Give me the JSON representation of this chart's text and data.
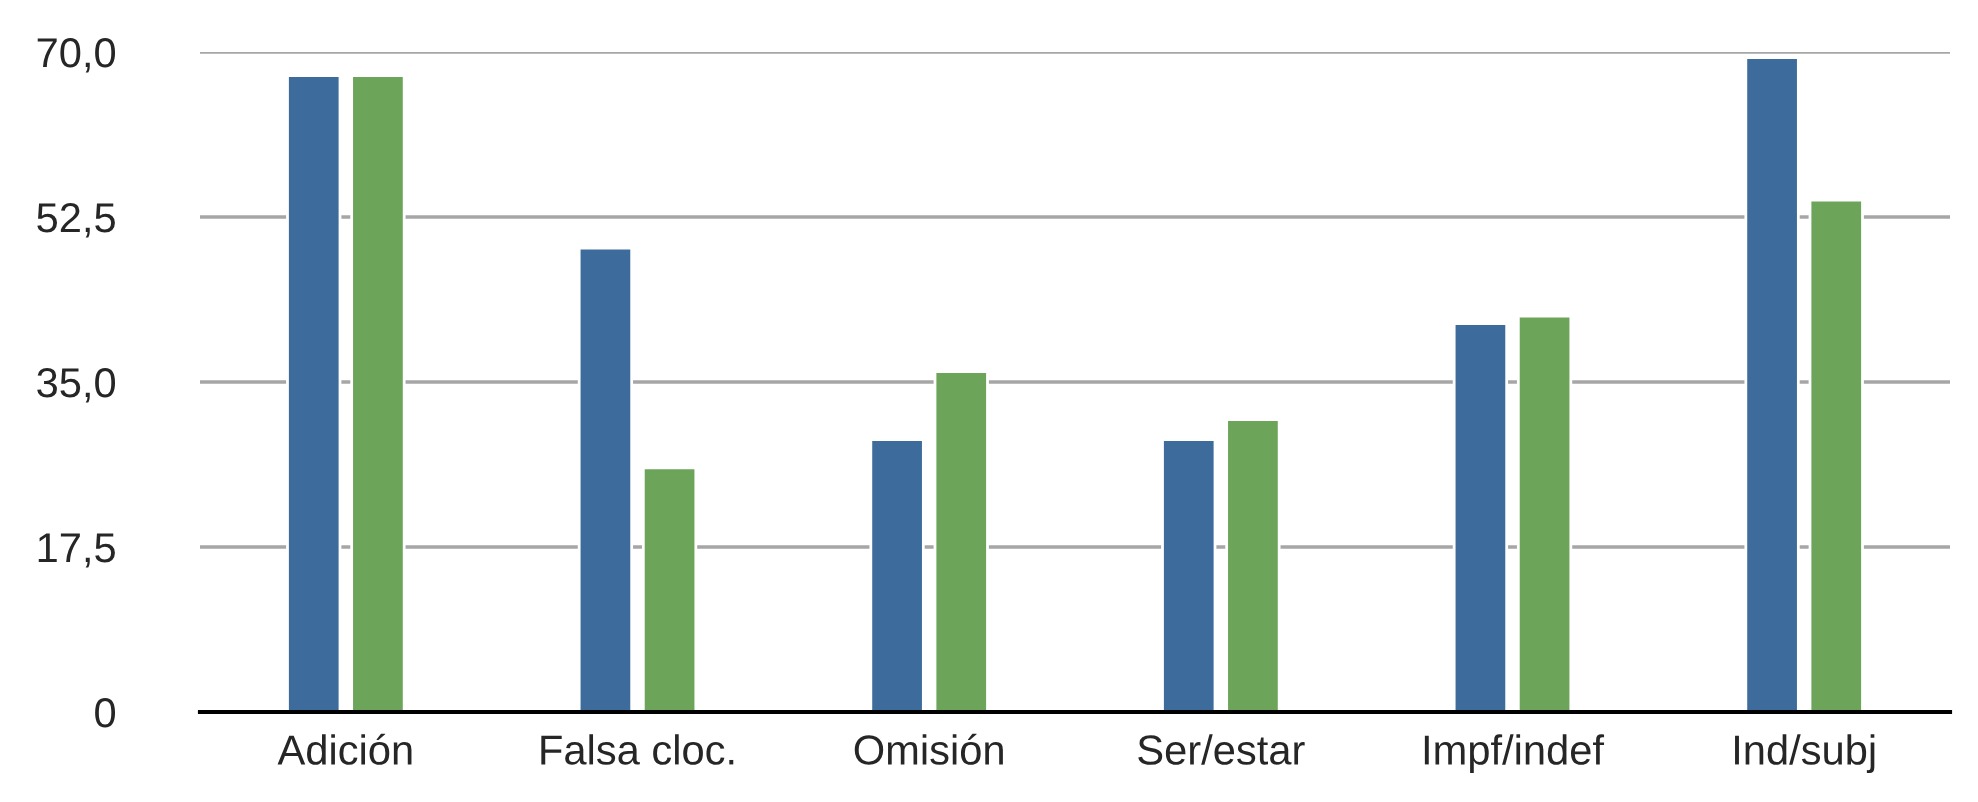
{
  "chart_data": {
    "type": "bar",
    "categories": [
      "Adición",
      "Falsa cloc.",
      "Omisión",
      "Ser/estar",
      "Impf/indef",
      "Ind/subj"
    ],
    "series": [
      {
        "color": "#3d6b9c",
        "values": [
          67.5,
          49.2,
          28.9,
          28.9,
          41.2,
          69.4
        ]
      },
      {
        "color": "#6ca55a",
        "values": [
          67.5,
          25.9,
          36.1,
          31.0,
          42.0,
          54.3
        ]
      }
    ],
    "ylim": [
      0,
      70
    ],
    "yticks": [
      {
        "value": 0,
        "label": "0"
      },
      {
        "value": 17.5,
        "label": "17,5"
      },
      {
        "value": 35,
        "label": "35,0"
      },
      {
        "value": 52.5,
        "label": "52,5"
      },
      {
        "value": 70,
        "label": "70,0"
      }
    ],
    "grid": "y"
  }
}
